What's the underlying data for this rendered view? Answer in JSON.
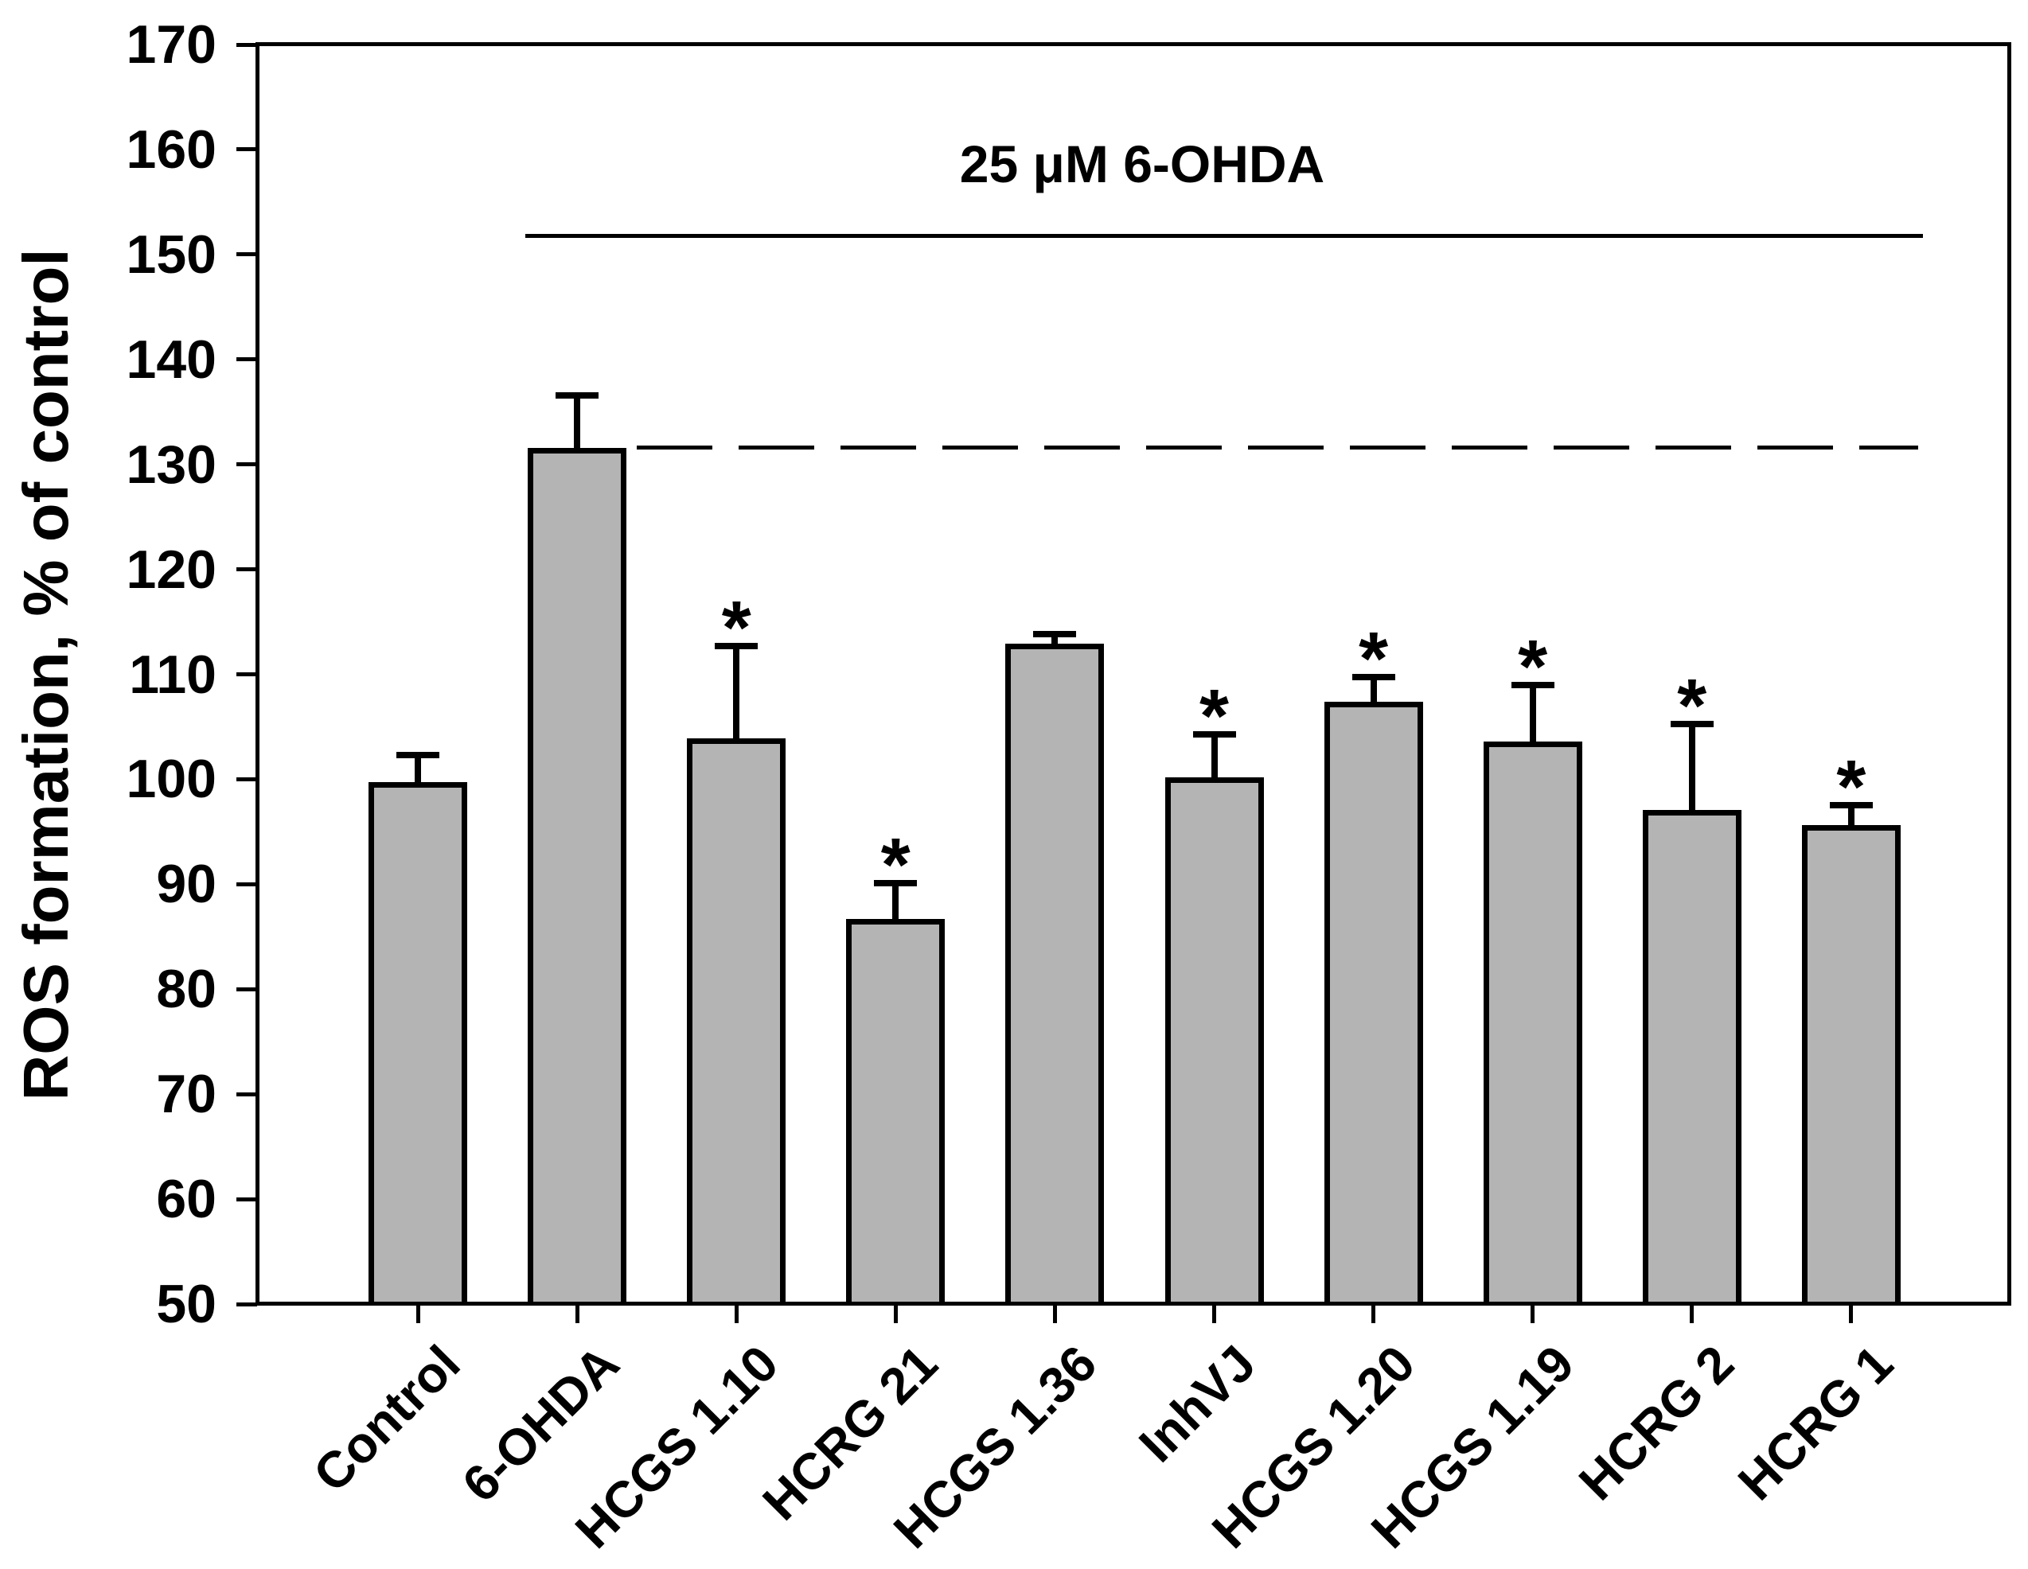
{
  "chart_data": {
    "type": "bar",
    "title": "25 μM  6-OHDA",
    "ylabel": "ROS formation, % of control",
    "xlabel": "",
    "categories": [
      "Control",
      "6-OHDA",
      "HCGS 1.10",
      "HCRG 21",
      "HCGS 1.36",
      "InhVJ",
      "HCGS 1.20",
      "HCGS 1.19",
      "HCRG 2",
      "HCRG 1"
    ],
    "values": [
      99.7,
      131.6,
      103.9,
      86.7,
      112.9,
      100.2,
      107.4,
      103.6,
      97.1,
      95.6
    ],
    "errors_plus": [
      2.6,
      5.0,
      8.8,
      3.4,
      0.9,
      4.1,
      2.3,
      5.4,
      8.2,
      1.9
    ],
    "significant": [
      false,
      false,
      true,
      true,
      false,
      true,
      true,
      true,
      true,
      true
    ],
    "significance_marker": "*",
    "ylim": [
      50,
      170
    ],
    "yticks": [
      50,
      60,
      70,
      80,
      90,
      100,
      110,
      120,
      130,
      140,
      150,
      160,
      170
    ],
    "grid": false,
    "legend": false,
    "bar_color": "#b4b4b4",
    "bar_edge_color": "#000000",
    "annotations": {
      "bracket_line": {
        "style": "solid",
        "label": "25 μM  6-OHDA",
        "spans": "6-OHDA through HCRG 1"
      },
      "reference_line": {
        "style": "dashed",
        "value": 131.6,
        "note": "level of 6-OHDA bar top"
      }
    }
  }
}
